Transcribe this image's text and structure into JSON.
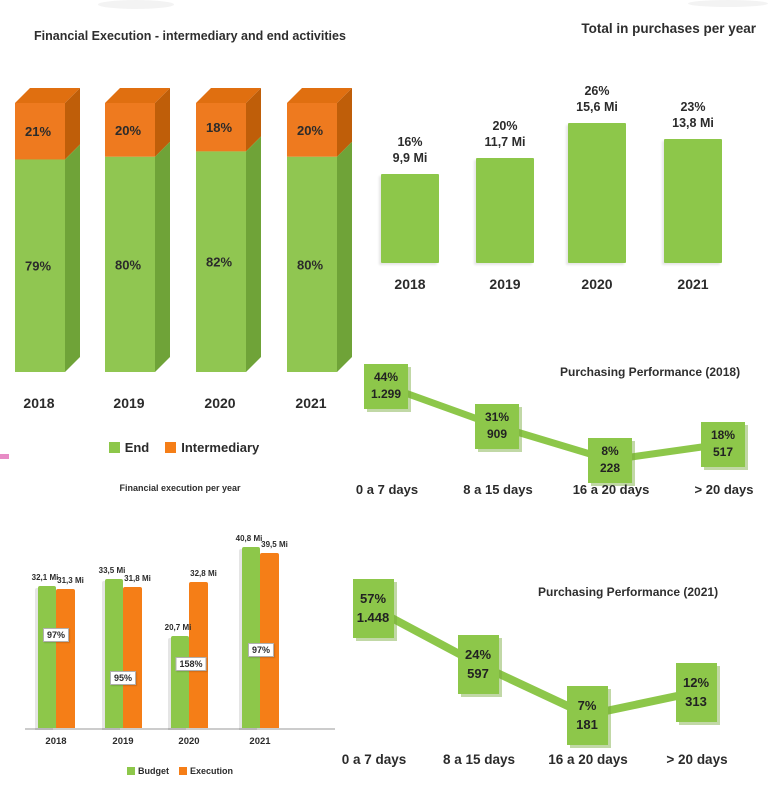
{
  "colors": {
    "green": "#8dc74a",
    "green_front": "#90c651",
    "green_side": "#6fa338",
    "orange": "#f57e17",
    "orange_front": "#ee7a1f",
    "orange_side": "#bf5e09",
    "orange_top": "#e06f10",
    "text": "#2b2b2b",
    "axis": "#cccccc",
    "pink_artifact": "#e78bc5"
  },
  "chart_data": [
    {
      "id": "stacked",
      "type": "bar",
      "subtype": "stacked-3d",
      "title": "Financial Execution - intermediary and end activities",
      "categories": [
        "2018",
        "2019",
        "2020",
        "2021"
      ],
      "series": [
        {
          "name": "End",
          "color": "green",
          "values": [
            79,
            80,
            82,
            80
          ],
          "labels": [
            "79%",
            "80%",
            "82%",
            "80%"
          ]
        },
        {
          "name": "Intermediary",
          "color": "orange",
          "values": [
            21,
            20,
            18,
            20
          ],
          "labels": [
            "21%",
            "20%",
            "18%",
            "20%"
          ]
        }
      ],
      "legend": [
        "End",
        "Intermediary"
      ],
      "legend_position": "bottom",
      "ylim": [
        0,
        100
      ],
      "grid": false
    },
    {
      "id": "purchases",
      "type": "bar",
      "title": "Total in purchases per year",
      "categories": [
        "2018",
        "2019",
        "2020",
        "2021"
      ],
      "values": [
        9.9,
        11.7,
        15.6,
        13.8
      ],
      "unit": "Mi",
      "point_labels": [
        [
          "16%",
          "9,9 Mi"
        ],
        [
          "20%",
          "11,7 Mi"
        ],
        [
          "26%",
          "15,6 Mi"
        ],
        [
          "23%",
          "13,8 Mi"
        ]
      ],
      "grid": false
    },
    {
      "id": "perf2018",
      "type": "line",
      "title": "Purchasing Performance (2018)",
      "categories": [
        "0 a 7 days",
        "8 a 15 days",
        "16 a 20 days",
        "> 20 days"
      ],
      "points": [
        {
          "pct": "44%",
          "value": "1.299"
        },
        {
          "pct": "31%",
          "value": "909"
        },
        {
          "pct": "8%",
          "value": "228"
        },
        {
          "pct": "18%",
          "value": "517"
        }
      ],
      "grid": false
    },
    {
      "id": "execution",
      "type": "bar",
      "subtype": "grouped",
      "title": "Financial execution per year",
      "categories": [
        "2018",
        "2019",
        "2020",
        "2021"
      ],
      "series": [
        {
          "name": "Budget",
          "color": "green",
          "values": [
            32.1,
            33.5,
            20.7,
            40.8
          ],
          "labels": [
            "32,1 Mi",
            "33,5 Mi",
            "20,7 Mi",
            "40,8 Mi"
          ]
        },
        {
          "name": "Execution",
          "color": "orange",
          "values": [
            31.3,
            31.8,
            32.8,
            39.5
          ],
          "labels": [
            "31,3 Mi",
            "31,8 Mi",
            "32,8 Mi",
            "39,5 Mi"
          ]
        }
      ],
      "pct_labels": [
        "97%",
        "95%",
        "158%",
        "97%"
      ],
      "legend": [
        "Budget",
        "Execution"
      ],
      "legend_position": "bottom",
      "grid": false
    },
    {
      "id": "perf2021",
      "type": "line",
      "title": "Purchasing Performance (2021)",
      "categories": [
        "0 a 7 days",
        "8 a 15 days",
        "16 a 20 days",
        "> 20 days"
      ],
      "points": [
        {
          "pct": "57%",
          "value": "1.448"
        },
        {
          "pct": "24%",
          "value": "597"
        },
        {
          "pct": "7%",
          "value": "181"
        },
        {
          "pct": "12%",
          "value": "313"
        }
      ],
      "grid": false
    }
  ]
}
